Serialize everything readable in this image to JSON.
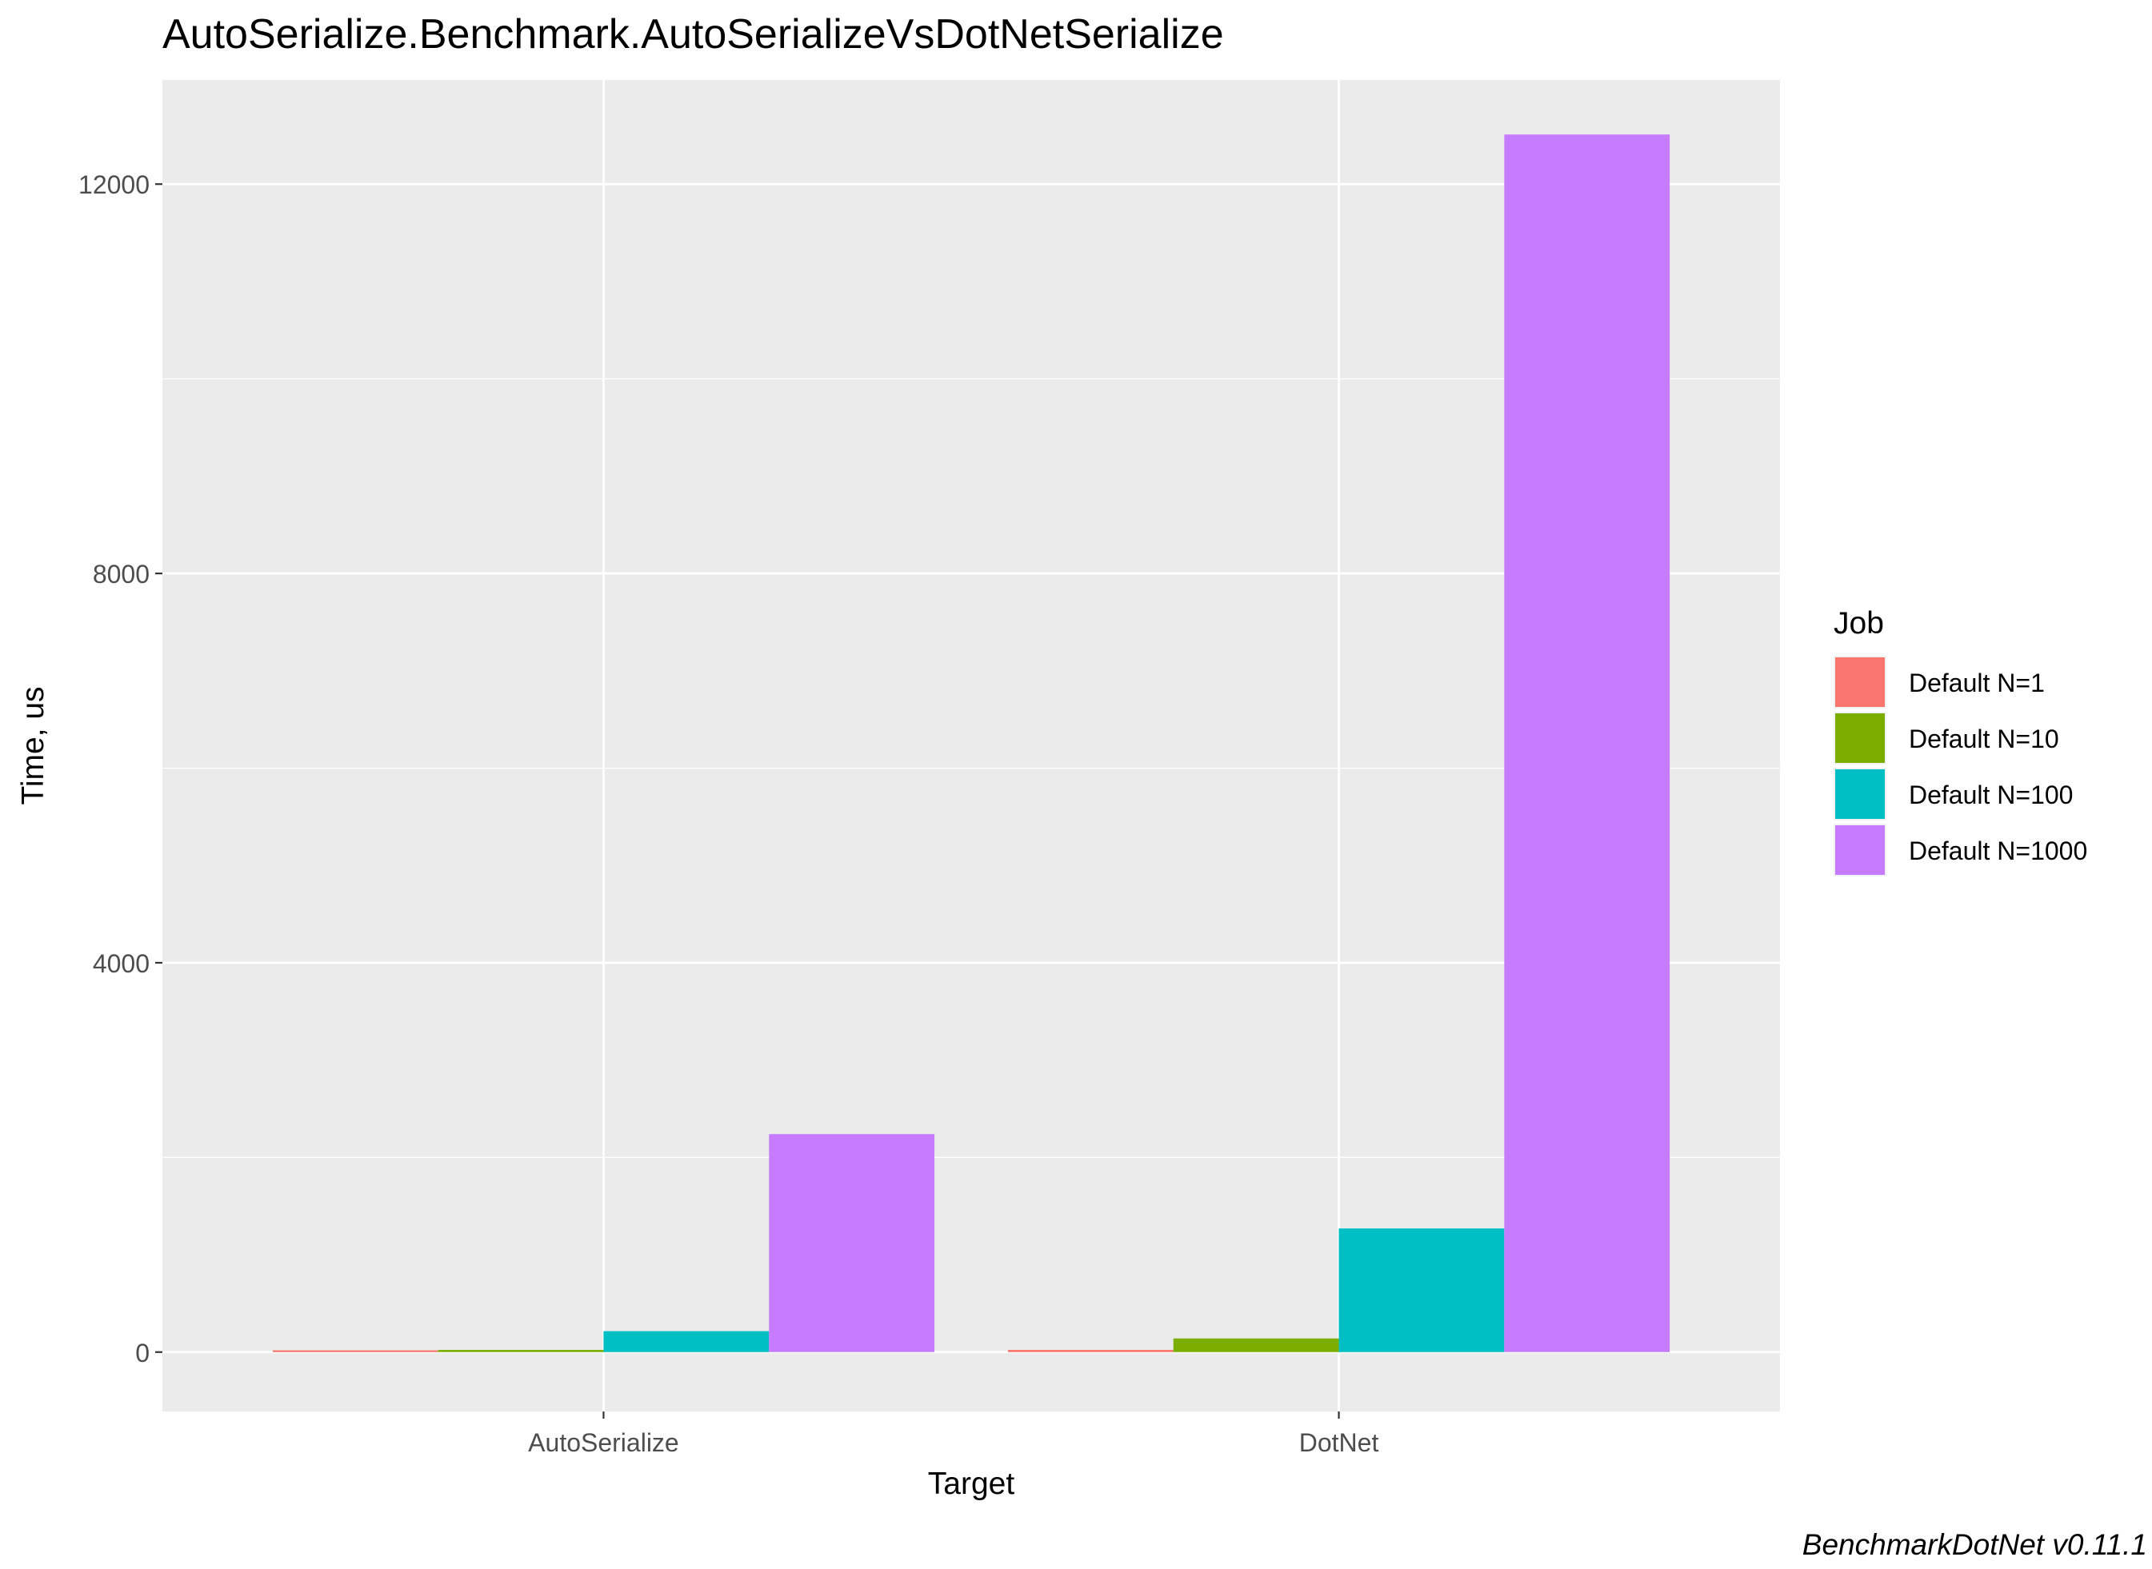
{
  "chart_data": {
    "type": "bar",
    "title": "AutoSerialize.Benchmark.AutoSerializeVsDotNetSerialize",
    "xlabel": "Target",
    "ylabel": "Time, us",
    "categories": [
      "AutoSerialize",
      "DotNet"
    ],
    "series": [
      {
        "name": "Default N=1",
        "color": "#F8766D",
        "values": [
          18,
          22
        ]
      },
      {
        "name": "Default N=10",
        "color": "#7CAE00",
        "values": [
          22,
          140
        ]
      },
      {
        "name": "Default N=100",
        "color": "#00BFC4",
        "values": [
          215,
          1270
        ]
      },
      {
        "name": "Default N=1000",
        "color": "#C77CFF",
        "values": [
          2240,
          12510
        ]
      }
    ],
    "ylim": [
      -610,
      13070
    ],
    "yticks": [
      0,
      4000,
      8000,
      12000
    ],
    "legend": {
      "title": "Job",
      "position": "right"
    },
    "grid": true,
    "panel_background": "#EBEBEB",
    "grid_color": "#FFFFFF"
  },
  "caption": "BenchmarkDotNet v0.11.1"
}
